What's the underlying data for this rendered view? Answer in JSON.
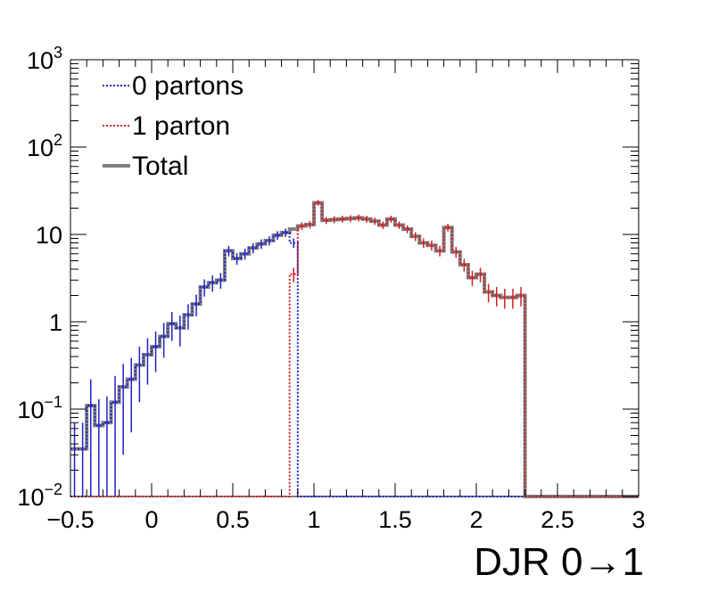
{
  "chart_data": {
    "type": "line",
    "xlabel": "DJR 0→1",
    "ylabel": "",
    "xlim": [
      -0.5,
      3.0
    ],
    "ylim": [
      0.01,
      1000
    ],
    "yscale": "log",
    "grid": false,
    "legend_placement": "top-left",
    "x_ticks": [
      "−0.5",
      "0",
      "0.5",
      "1",
      "1.5",
      "2",
      "2.5",
      "3"
    ],
    "y_ticks": [
      {
        "base": "10",
        "exp": "−2"
      },
      {
        "base": "10",
        "exp": "−1"
      },
      {
        "base": "1",
        "exp": ""
      },
      {
        "base": "10",
        "exp": ""
      },
      {
        "base": "10",
        "exp": "2"
      },
      {
        "base": "10",
        "exp": "3"
      }
    ],
    "bin_width": 0.05,
    "series": [
      {
        "name": "0 partons",
        "color": "#1f1fcc",
        "style": "dotted",
        "x_start": -0.5,
        "values": [
          0.035,
          0.035,
          0.11,
          0.065,
          0.07,
          0.12,
          0.18,
          0.22,
          0.32,
          0.42,
          0.52,
          0.68,
          0.95,
          0.85,
          1.2,
          1.6,
          2.5,
          2.8,
          3.0,
          6.5,
          5.3,
          6.0,
          7.0,
          7.8,
          8.5,
          9.8,
          10.5,
          8.0,
          0,
          0,
          0,
          0,
          0,
          0,
          0,
          0,
          0,
          0,
          0,
          0,
          0,
          0,
          0,
          0,
          0,
          0,
          0,
          0,
          0,
          0,
          0,
          0,
          0,
          0,
          0,
          0,
          0,
          0,
          0,
          0,
          0,
          0,
          0,
          0,
          0,
          0,
          0,
          0,
          0,
          0
        ]
      },
      {
        "name": "1 parton",
        "color": "#d11f1f",
        "style": "dotted",
        "x_start": -0.5,
        "values": [
          0,
          0,
          0,
          0,
          0,
          0,
          0,
          0,
          0,
          0,
          0,
          0,
          0,
          0,
          0,
          0,
          0,
          0,
          0,
          0,
          0,
          0,
          0,
          0,
          0,
          0,
          0,
          3.5,
          12.5,
          13.0,
          23.0,
          14.5,
          14.8,
          15.0,
          15.2,
          15.5,
          15.0,
          14.2,
          12.8,
          15.0,
          12.8,
          11.5,
          9.5,
          8.0,
          7.5,
          6.5,
          12.0,
          6.3,
          4.5,
          3.2,
          3.5,
          2.2,
          2.0,
          1.9,
          1.9,
          2.0
        ]
      },
      {
        "name": "Total",
        "color": "#808080",
        "style": "solid",
        "x_start": -0.5,
        "values": [
          0.035,
          0.035,
          0.11,
          0.065,
          0.07,
          0.12,
          0.18,
          0.22,
          0.32,
          0.42,
          0.52,
          0.68,
          0.95,
          0.85,
          1.2,
          1.6,
          2.5,
          2.8,
          3.0,
          6.5,
          5.3,
          6.0,
          7.0,
          7.8,
          8.5,
          9.8,
          10.5,
          11.5,
          12.5,
          13.0,
          23.0,
          14.5,
          14.8,
          15.0,
          15.2,
          15.5,
          15.0,
          14.2,
          12.8,
          15.0,
          12.8,
          11.5,
          9.5,
          8.0,
          7.5,
          6.5,
          12.0,
          6.3,
          4.5,
          3.2,
          3.5,
          2.2,
          2.0,
          1.9,
          1.9,
          2.0
        ]
      }
    ]
  }
}
